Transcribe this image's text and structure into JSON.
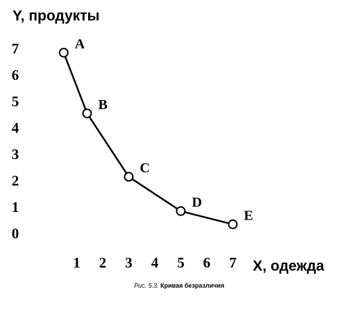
{
  "chart_data": {
    "type": "line",
    "y_label": "Y, продукты",
    "x_label": "X, одежда",
    "caption": {
      "number": "Рис. 5.3.",
      "text": "Кривая безразличия"
    },
    "x": [
      0.5,
      1.4,
      3,
      5,
      7
    ],
    "values": [
      6.9,
      4.6,
      2.2,
      0.9,
      0.4
    ],
    "point_labels": [
      "A",
      "B",
      "C",
      "D",
      "E"
    ],
    "color": "#000000",
    "xlim": [
      0,
      7.5
    ],
    "ylim": [
      0,
      7.5
    ],
    "xticks": [
      1,
      2,
      3,
      4,
      5,
      6,
      7
    ],
    "yticks": [
      0,
      1,
      2,
      3,
      4,
      5,
      6,
      7
    ]
  }
}
